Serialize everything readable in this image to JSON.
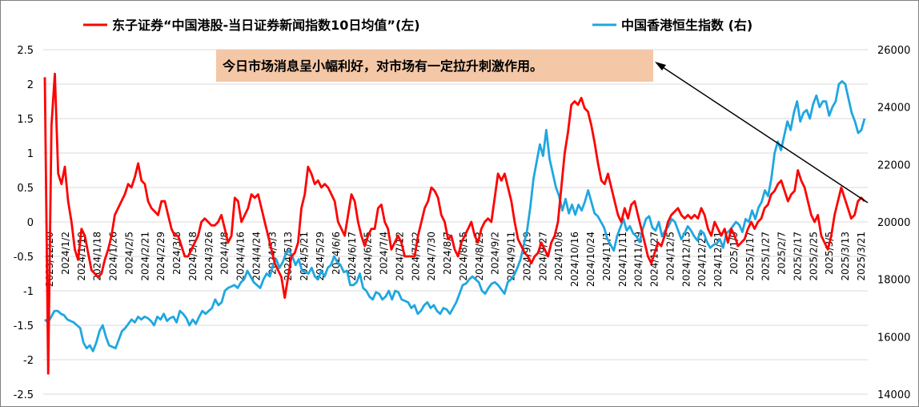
{
  "chart_data": {
    "type": "line",
    "title": "",
    "legend": {
      "placement": "top",
      "entries": [
        {
          "name": "东子证券“中国港股-当日证券新闻指数10日均值”(左)",
          "color": "#ff0000"
        },
        {
          "name": "中国香港恒生指数 (右)",
          "color": "#1fa7e0"
        }
      ]
    },
    "annotation": "今日市场消息呈小幅利好，对市场有一定拉升刺激作用。",
    "y_left": {
      "range": [
        -2.5,
        2.5
      ],
      "ticks": [
        "2.5",
        "2",
        "1.5",
        "1",
        "0.5",
        "0",
        "-0.5",
        "-1",
        "-1.5",
        "-2",
        "-2.5"
      ]
    },
    "y_right": {
      "range": [
        14000,
        26000
      ],
      "ticks": [
        "26000",
        "24000",
        "22000",
        "20000",
        "18000",
        "16000",
        "14000"
      ]
    },
    "x_tick_labels": [
      "2023/12/20",
      "2024/1/2",
      "2024/1/10",
      "2024/1/18",
      "2024/1/26",
      "2024/2/5",
      "2024/2/21",
      "2024/2/29",
      "2024/3/8",
      "2024/3/18",
      "2024/3/26",
      "2024/4/8",
      "2024/4/16",
      "2024/4/24",
      "2024/5/3",
      "2024/5/13",
      "2024/5/21",
      "2024/5/29",
      "2024/6/6",
      "2024/6/17",
      "2024/6/25",
      "2024/7/4",
      "2024/7/12",
      "2024/7/22",
      "2024/7/30",
      "2024/8/7",
      "2024/8/15",
      "2024/8/23",
      "2024/9/2",
      "2024/9/11",
      "2024/9/19",
      "2024/9/27",
      "2024/10/8",
      "2024/10/16",
      "2024/10/24",
      "2024/11/1",
      "2024/11/11",
      "2024/11/19",
      "2024/11/27",
      "2024/12/5",
      "2024/12/13",
      "2024/12/23",
      "2024/12/31",
      "2025/1/9",
      "2025/1/17",
      "2025/1/27",
      "2025/2/7",
      "2025/2/17",
      "2025/2/25",
      "2025/3/5",
      "2025/3/13",
      "2025/3/21"
    ],
    "grid": true,
    "series": [
      {
        "name": "东子证券“中国港股-当日证券新闻指数10日均值”(左)",
        "axis": "left",
        "color": "#ff0000",
        "values": [
          2.1,
          -2.2,
          1.4,
          2.15,
          0.7,
          0.55,
          0.8,
          0.3,
          0.0,
          -0.4,
          -0.55,
          -0.1,
          -0.2,
          -0.45,
          -0.7,
          -0.75,
          -0.8,
          -0.75,
          -0.55,
          -0.4,
          -0.2,
          0.1,
          0.2,
          0.3,
          0.4,
          0.55,
          0.5,
          0.65,
          0.85,
          0.6,
          0.55,
          0.3,
          0.2,
          0.15,
          0.1,
          0.3,
          0.3,
          0.1,
          -0.1,
          -0.2,
          -0.2,
          -0.35,
          -0.5,
          -0.5,
          -0.4,
          -0.3,
          -0.2,
          0.0,
          0.05,
          0.0,
          -0.05,
          -0.05,
          0.0,
          0.1,
          -0.1,
          -0.3,
          -0.2,
          0.35,
          0.3,
          0.0,
          0.1,
          0.2,
          0.4,
          0.35,
          0.4,
          0.2,
          0.0,
          -0.2,
          -0.4,
          -0.6,
          -0.7,
          -0.8,
          -1.1,
          -0.8,
          -0.5,
          -0.45,
          -0.3,
          0.2,
          0.4,
          0.8,
          0.7,
          0.55,
          0.6,
          0.5,
          0.55,
          0.5,
          0.4,
          0.3,
          0.0,
          -0.1,
          -0.2,
          0.1,
          0.4,
          0.3,
          0.0,
          -0.2,
          -0.35,
          -0.2,
          -0.1,
          -0.1,
          0.2,
          0.25,
          0.0,
          -0.1,
          -0.4,
          -0.3,
          -0.2,
          -0.3,
          -0.5,
          -0.5,
          -0.5,
          -0.5,
          -0.2,
          0.0,
          0.2,
          0.3,
          0.5,
          0.45,
          0.35,
          0.1,
          0.0,
          -0.25,
          -0.2,
          -0.4,
          -0.5,
          -0.3,
          -0.2,
          -0.1,
          0.0,
          -0.2,
          -0.3,
          -0.1,
          0.0,
          0.05,
          0.0,
          0.35,
          0.7,
          0.6,
          0.7,
          0.5,
          0.3,
          0.0,
          -0.25,
          -0.35,
          -0.45,
          -0.5,
          -0.6,
          -0.5,
          -0.45,
          -0.3,
          -0.4,
          -0.5,
          -0.3,
          -0.2,
          0.0,
          0.5,
          1.0,
          1.3,
          1.7,
          1.75,
          1.7,
          1.8,
          1.65,
          1.6,
          1.4,
          1.15,
          0.85,
          0.6,
          0.55,
          0.7,
          0.5,
          0.3,
          0.1,
          0.0,
          0.2,
          0.05,
          0.25,
          0.3,
          0.1,
          -0.1,
          -0.3,
          -0.5,
          -0.6,
          -0.45,
          -0.3,
          -0.35,
          -0.2,
          0.0,
          0.1,
          0.15,
          0.2,
          0.1,
          0.05,
          0.1,
          0.05,
          0.1,
          0.05,
          0.2,
          0.1,
          -0.1,
          -0.2,
          0.0,
          -0.1,
          -0.2,
          -0.1,
          -0.3,
          -0.1,
          -0.2,
          -0.35,
          -0.3,
          -0.25,
          -0.1,
          0.0,
          -0.1,
          0.0,
          0.05,
          0.2,
          0.25,
          0.4,
          0.45,
          0.55,
          0.6,
          0.45,
          0.3,
          0.4,
          0.45,
          0.75,
          0.6,
          0.5,
          0.3,
          0.1,
          0.0,
          0.1,
          -0.2,
          -0.3,
          -0.4,
          -0.2,
          0.1,
          0.3,
          0.5,
          0.35,
          0.2,
          0.05,
          0.1,
          0.3,
          0.35,
          0.3
        ]
      },
      {
        "name": "中国香港恒生指数 (右)",
        "axis": "right",
        "color": "#1fa7e0",
        "values": [
          16600,
          16500,
          16700,
          16900,
          16900,
          16800,
          16750,
          16600,
          16550,
          16500,
          16400,
          16300,
          15800,
          15600,
          15700,
          15500,
          15800,
          16200,
          16400,
          16000,
          15700,
          15650,
          15600,
          15900,
          16200,
          16300,
          16450,
          16600,
          16500,
          16700,
          16600,
          16700,
          16650,
          16550,
          16400,
          16700,
          16600,
          16800,
          16550,
          16650,
          16700,
          16500,
          16900,
          16800,
          16650,
          16400,
          16600,
          16450,
          16700,
          16900,
          16800,
          16900,
          17000,
          17300,
          17100,
          17200,
          17600,
          17700,
          17750,
          17800,
          17700,
          17900,
          18000,
          18300,
          18100,
          17900,
          17800,
          17700,
          18000,
          18200,
          18100,
          18500,
          18700,
          18400,
          18600,
          18900,
          19000,
          18800,
          18500,
          18700,
          18300,
          18250,
          18200,
          18400,
          18100,
          18000,
          18300,
          18100,
          18400,
          18500,
          18800,
          18600,
          18500,
          18250,
          18300,
          17800,
          17800,
          17900,
          18200,
          17700,
          17600,
          17400,
          17300,
          17550,
          17500,
          17300,
          17400,
          17600,
          17300,
          17600,
          17550,
          17300,
          17250,
          17200,
          17000,
          17100,
          16800,
          16900,
          17100,
          17200,
          17000,
          17100,
          16900,
          16800,
          17000,
          16950,
          16800,
          17000,
          17200,
          17500,
          17800,
          17850,
          18000,
          18100,
          18000,
          17900,
          17600,
          17500,
          17700,
          17850,
          17900,
          17800,
          17650,
          17500,
          17900,
          18000,
          18150,
          18400,
          18700,
          19200,
          19700,
          20500,
          21500,
          22100,
          22700,
          22300,
          23200,
          22200,
          21700,
          21200,
          20900,
          20400,
          20800,
          20300,
          20600,
          20250,
          20600,
          20400,
          20700,
          21100,
          20700,
          20300,
          20200,
          20000,
          19800,
          19400,
          19200,
          19000,
          19500,
          19800,
          20100,
          19700,
          19850,
          19600,
          19500,
          19300,
          19750,
          20100,
          20200,
          19800,
          19700,
          20000,
          19500,
          19700,
          19850,
          20100,
          20000,
          19700,
          19400,
          19600,
          19850,
          19700,
          19500,
          19350,
          19700,
          19600,
          19300,
          19100,
          19200,
          19250,
          19400,
          19100,
          19600,
          19700,
          19850,
          20000,
          19900,
          19650,
          20100,
          20000,
          20400,
          20100,
          20500,
          20700,
          21100,
          20900,
          21500,
          22400,
          22800,
          22500,
          23000,
          23500,
          23200,
          23800,
          24200,
          23500,
          23800,
          23900,
          23600,
          24100,
          24400,
          24000,
          24200,
          24200,
          23700,
          24000,
          24200,
          24800,
          24900,
          24800,
          24300,
          23800,
          23500,
          23100,
          23200,
          23600
        ]
      }
    ]
  }
}
